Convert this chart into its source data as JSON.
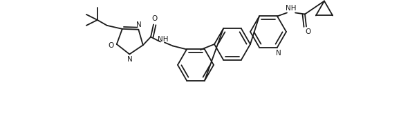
{
  "background_color": "#ffffff",
  "line_color": "#1a1a1a",
  "line_width": 1.3,
  "figsize": [
    6.06,
    1.94
  ],
  "dpi": 100,
  "xlim": [
    0,
    606
  ],
  "ylim": [
    0,
    194
  ]
}
